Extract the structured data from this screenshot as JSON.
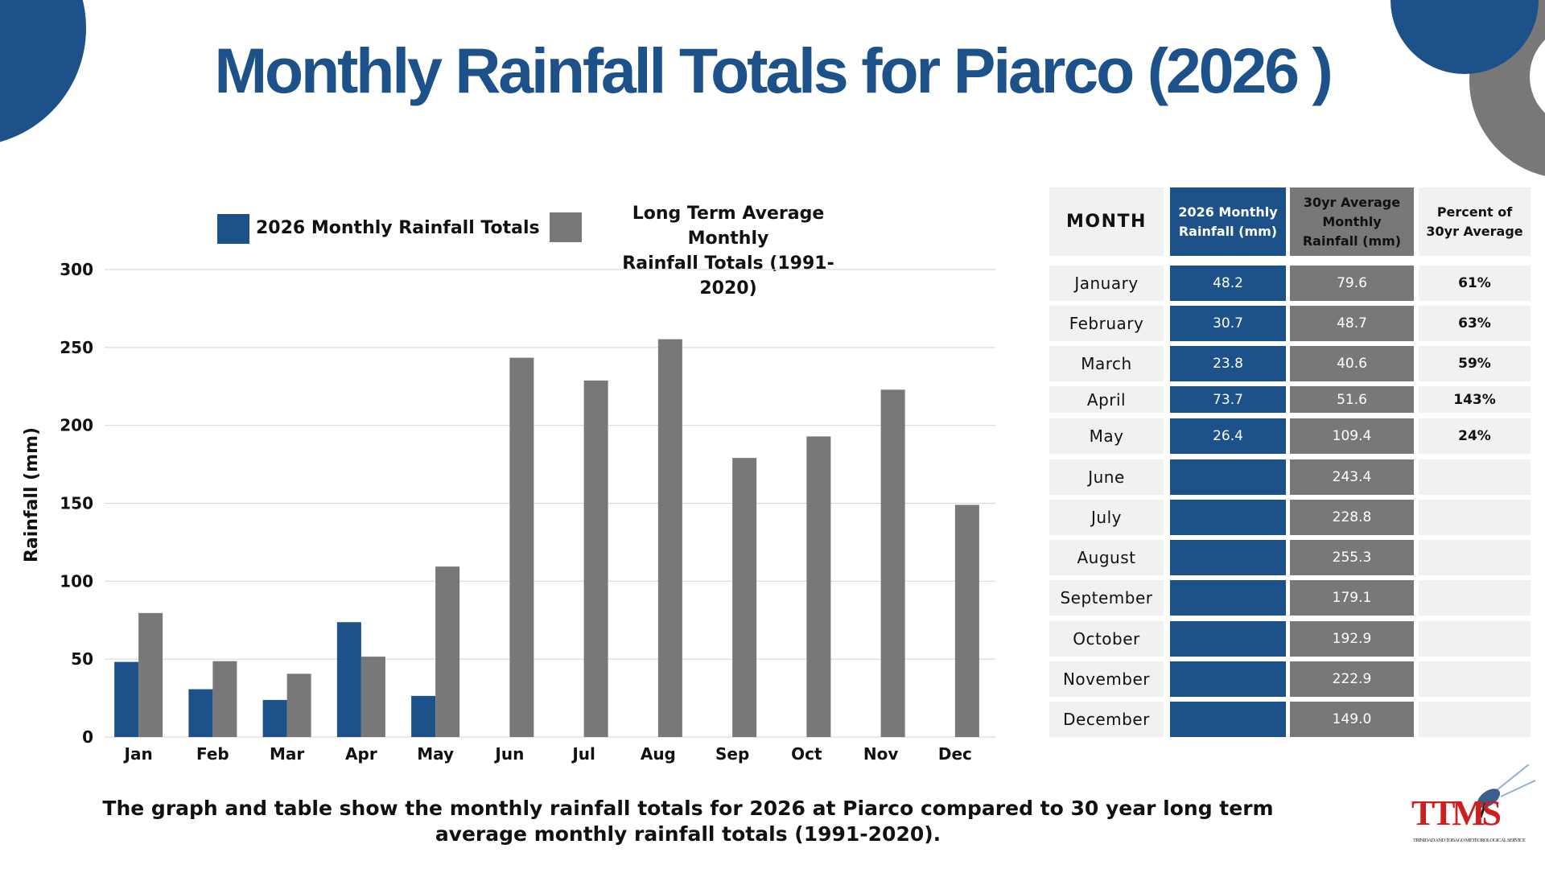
{
  "title": "Monthly Rainfall Totals for Piarco (2026 )",
  "colors": {
    "primary": "#1d5189",
    "secondary": "#787878",
    "cell_bg": "#f1f1f1",
    "grid": "#d9d9d9"
  },
  "legend": [
    {
      "label": "2026 Monthly Rainfall Totals",
      "color": "#1d5189"
    },
    {
      "label": "Long Term Average Monthly Rainfall Totals (1991-2020)",
      "label_lines": [
        "Long Term Average Monthly",
        "Rainfall Totals (1991-2020)"
      ],
      "color": "#787878"
    }
  ],
  "chart_data": {
    "type": "bar",
    "categories": [
      "Jan",
      "Feb",
      "Mar",
      "Apr",
      "May",
      "Jun",
      "Jul",
      "Aug",
      "Sep",
      "Oct",
      "Nov",
      "Dec"
    ],
    "series": [
      {
        "name": "2026 Monthly Rainfall Totals",
        "color": "#1d5189",
        "values": [
          48.2,
          30.7,
          23.8,
          73.7,
          26.4,
          null,
          null,
          null,
          null,
          null,
          null,
          null
        ]
      },
      {
        "name": "Long Term Average Monthly Rainfall Totals (1991-2020)",
        "color": "#787878",
        "values": [
          79.6,
          48.7,
          40.6,
          51.6,
          109.4,
          243.4,
          228.8,
          255.3,
          179.1,
          192.9,
          222.9,
          149.0
        ]
      }
    ],
    "xlabel": "",
    "ylabel": "Rainfall  (mm)",
    "ylim": [
      0,
      300
    ],
    "yticks": [
      0,
      50,
      100,
      150,
      200,
      250,
      300
    ],
    "grid": true,
    "legend_position": "top"
  },
  "table": {
    "headers": [
      "MONTH",
      "2026 Monthly Rainfall (mm)",
      "30yr Average Monthly Rainfall (mm)",
      "Percent of 30yr Average"
    ],
    "header_lines": [
      [
        "MONTH"
      ],
      [
        "2026 Monthly",
        "Rainfall (mm)"
      ],
      [
        "30yr Average",
        "Monthly",
        "Rainfall (mm)"
      ],
      [
        "Percent of",
        "30yr Average"
      ]
    ],
    "rows": [
      {
        "month": "January",
        "rain2026": "48.2",
        "avg": "79.6",
        "pct": "61%"
      },
      {
        "month": "February",
        "rain2026": "30.7",
        "avg": "48.7",
        "pct": "63%"
      },
      {
        "month": "March",
        "rain2026": "23.8",
        "avg": "40.6",
        "pct": "59%"
      },
      {
        "month": "April",
        "rain2026": "73.7",
        "avg": "51.6",
        "pct": "143%"
      },
      {
        "month": "May",
        "rain2026": "26.4",
        "avg": "109.4",
        "pct": "24%"
      },
      {
        "month": "June",
        "rain2026": "",
        "avg": "243.4",
        "pct": ""
      },
      {
        "month": "July",
        "rain2026": "",
        "avg": "228.8",
        "pct": ""
      },
      {
        "month": "August",
        "rain2026": "",
        "avg": "255.3",
        "pct": ""
      },
      {
        "month": "September",
        "rain2026": "",
        "avg": "179.1",
        "pct": ""
      },
      {
        "month": "October",
        "rain2026": "",
        "avg": "192.9",
        "pct": ""
      },
      {
        "month": "November",
        "rain2026": "",
        "avg": "222.9",
        "pct": ""
      },
      {
        "month": "December",
        "rain2026": "",
        "avg": "149.0",
        "pct": ""
      }
    ]
  },
  "caption": "The graph and table show the monthly rainfall totals for 2026 at Piarco compared to 30 year long term average monthly rainfall totals (1991-2020).",
  "logo": {
    "text": "TTMS",
    "subtext": "TRINIDAD AND TOBAGO METEOROLOGICAL SERVICE",
    "icon": "radar-dish-icon"
  }
}
